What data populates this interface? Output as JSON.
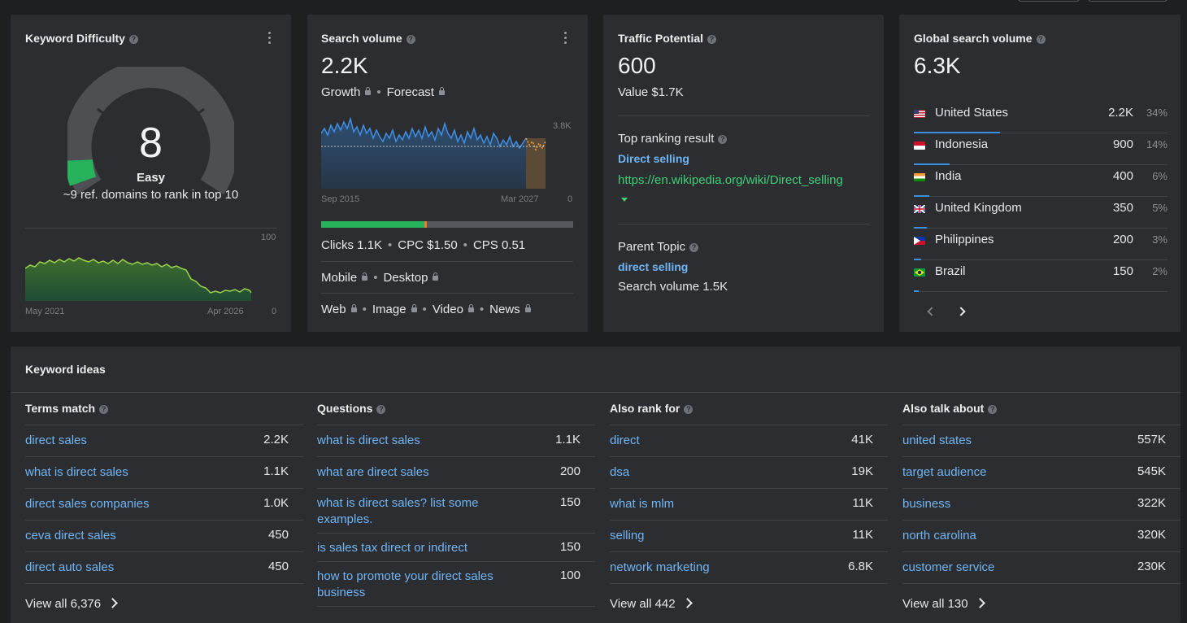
{
  "kd": {
    "title": "Keyword Difficulty",
    "score": "8",
    "label": "Easy",
    "subtext": "~9 ref. domains to rank in top 10",
    "chart_max": "100",
    "chart_min": "0",
    "date_start": "May 2021",
    "date_end": "Apr 2026"
  },
  "sv": {
    "title": "Search volume",
    "value": "2.2K",
    "growth": "Growth",
    "forecast": "Forecast",
    "chart_max": "3.8K",
    "chart_min": "0",
    "date_start": "Sep 2015",
    "date_end": "Mar 2027",
    "clicks": "Clicks 1.1K",
    "cpc": "CPC $1.50",
    "cps": "CPS 0.51",
    "mobile": "Mobile",
    "desktop": "Desktop",
    "web": "Web",
    "image": "Image",
    "video": "Video",
    "news": "News"
  },
  "tp": {
    "title": "Traffic Potential",
    "value": "600",
    "value_usd": "Value $1.7K",
    "top_result_label": "Top ranking result",
    "top_result_title": "Direct selling",
    "top_result_url": "https://en.wikipedia.org/wiki/Direct_selling",
    "parent_label": "Parent Topic",
    "parent_topic": "direct selling",
    "parent_volume": "Search volume 1.5K"
  },
  "gsv": {
    "title": "Global search volume",
    "value": "6.3K",
    "countries": [
      {
        "name": "United States",
        "volume": "2.2K",
        "pct": "34%",
        "share": 0.34,
        "flag": "us"
      },
      {
        "name": "Indonesia",
        "volume": "900",
        "pct": "14%",
        "share": 0.14,
        "flag": "id"
      },
      {
        "name": "India",
        "volume": "400",
        "pct": "6%",
        "share": 0.06,
        "flag": "in"
      },
      {
        "name": "United Kingdom",
        "volume": "350",
        "pct": "5%",
        "share": 0.05,
        "flag": "gb"
      },
      {
        "name": "Philippines",
        "volume": "200",
        "pct": "3%",
        "share": 0.03,
        "flag": "ph"
      },
      {
        "name": "Brazil",
        "volume": "150",
        "pct": "2%",
        "share": 0.02,
        "flag": "br"
      }
    ]
  },
  "ideas": {
    "title": "Keyword ideas",
    "columns": [
      {
        "title": "Terms match",
        "rows": [
          {
            "kw": "direct sales",
            "vol": "2.2K"
          },
          {
            "kw": "what is direct sales",
            "vol": "1.1K"
          },
          {
            "kw": "direct sales companies",
            "vol": "1.0K"
          },
          {
            "kw": "ceva direct sales",
            "vol": "450"
          },
          {
            "kw": "direct auto sales",
            "vol": "450"
          }
        ],
        "view_all": "View all 6,376"
      },
      {
        "title": "Questions",
        "rows": [
          {
            "kw": "what is direct sales",
            "vol": "1.1K"
          },
          {
            "kw": "what are direct sales",
            "vol": "200"
          },
          {
            "kw": "what is direct sales? list some examples.",
            "vol": "150"
          },
          {
            "kw": "is sales tax direct or indirect",
            "vol": "150"
          },
          {
            "kw": "how to promote your direct sales business",
            "vol": "100"
          }
        ],
        "view_all": ""
      },
      {
        "title": "Also rank for",
        "rows": [
          {
            "kw": "direct",
            "vol": "41K"
          },
          {
            "kw": "dsa",
            "vol": "19K"
          },
          {
            "kw": "what is mlm",
            "vol": "11K"
          },
          {
            "kw": "selling",
            "vol": "11K"
          },
          {
            "kw": "network marketing",
            "vol": "6.8K"
          }
        ],
        "view_all": "View all 442"
      },
      {
        "title": "Also talk about",
        "rows": [
          {
            "kw": "united states",
            "vol": "557K"
          },
          {
            "kw": "target audience",
            "vol": "545K"
          },
          {
            "kw": "business",
            "vol": "322K"
          },
          {
            "kw": "north carolina",
            "vol": "320K"
          },
          {
            "kw": "customer service",
            "vol": "230K"
          }
        ],
        "view_all": "View all 130"
      }
    ]
  }
}
